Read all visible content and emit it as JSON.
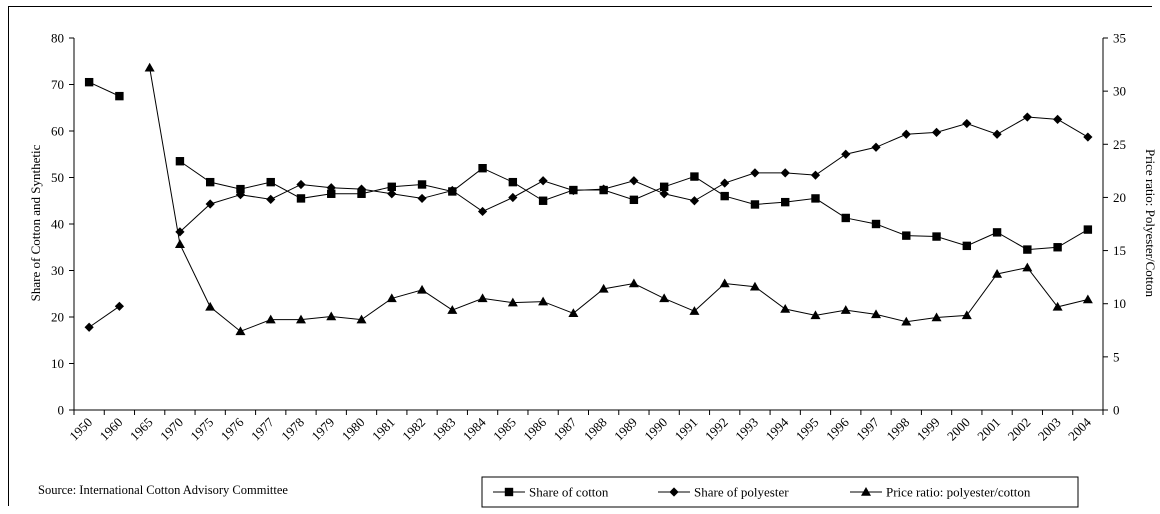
{
  "source_note": "Source: International Cotton Advisory Committee",
  "chart_data": {
    "type": "line",
    "categories": [
      "1950",
      "1960",
      "1965",
      "1970",
      "1975",
      "1976",
      "1977",
      "1978",
      "1979",
      "1980",
      "1981",
      "1982",
      "1983",
      "1984",
      "1985",
      "1986",
      "1987",
      "1988",
      "1989",
      "1990",
      "1991",
      "1992",
      "1993",
      "1994",
      "1995",
      "1996",
      "1997",
      "1998",
      "1999",
      "2000",
      "2001",
      "2002",
      "2003",
      "2004"
    ],
    "ylabel_left": "Share of Cotton and Synthetic",
    "ylabel_right": "Price ratio: Polyester/Cotton",
    "ylim_left": [
      0,
      80
    ],
    "ylim_right": [
      0,
      35
    ],
    "yticks_left": [
      "0",
      "10",
      "20",
      "30",
      "40",
      "50",
      "60",
      "70",
      "80"
    ],
    "yticks_right": [
      "0",
      "5",
      "10",
      "15",
      "20",
      "25",
      "30",
      "35"
    ],
    "grid": false,
    "legend_position": "bottom-right",
    "series": [
      {
        "name": "Share of cotton",
        "axis": "left",
        "marker": "square",
        "values": [
          70.5,
          67.5,
          null,
          53.5,
          49,
          47.5,
          49,
          45.5,
          46.5,
          46.5,
          48,
          48.5,
          47,
          52,
          49,
          45,
          47.3,
          47.3,
          45.2,
          48,
          50.2,
          46,
          44.2,
          44.7,
          45.5,
          41.3,
          40,
          37.5,
          37.3,
          35.3,
          38.2,
          34.5,
          35,
          38.8
        ]
      },
      {
        "name": "Share of polyester",
        "axis": "left",
        "marker": "diamond",
        "values": [
          17.8,
          22.3,
          null,
          38.3,
          44.3,
          46.3,
          45.3,
          48.5,
          47.8,
          47.5,
          46.5,
          45.5,
          47.2,
          42.7,
          45.7,
          49.3,
          47.2,
          47.5,
          49.3,
          46.5,
          45,
          48.8,
          51,
          51,
          50.5,
          55,
          56.5,
          59.3,
          59.7,
          61.6,
          59.3,
          63,
          62.5,
          58.7
        ]
      },
      {
        "name": "Price ratio: polyester/cotton",
        "axis": "right",
        "marker": "triangle",
        "values": [
          null,
          null,
          32.2,
          15.6,
          9.7,
          7.4,
          8.5,
          8.5,
          8.8,
          8.5,
          10.5,
          11.3,
          9.4,
          10.5,
          10.1,
          10.2,
          9.1,
          11.4,
          11.9,
          10.5,
          9.3,
          11.9,
          11.6,
          9.5,
          8.9,
          9.4,
          9,
          8.3,
          8.7,
          8.9,
          12.8,
          13.4,
          9.7,
          10.4
        ]
      }
    ]
  }
}
